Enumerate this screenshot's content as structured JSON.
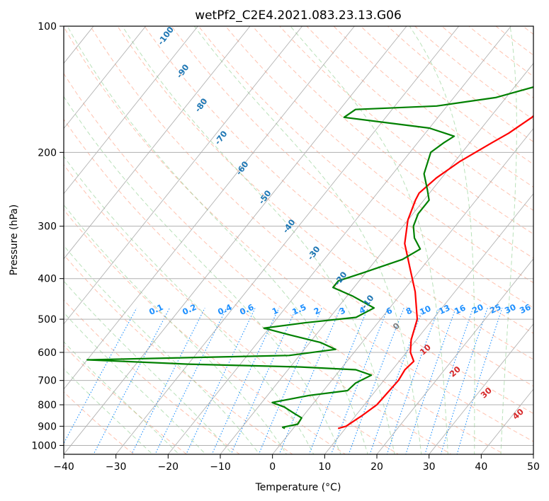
{
  "chart_data": {
    "type": "line",
    "subtype": "skew-t log-p diagram",
    "title": "wetPf2_C2E4.2021.083.23.13.G06",
    "xlabel": "Temperature (°C)",
    "ylabel": "Pressure (hPa)",
    "xlim": [
      -40,
      50
    ],
    "ylim": [
      1050,
      100
    ],
    "y_scale": "log",
    "grid": true,
    "x_ticks": [
      -40,
      -30,
      -20,
      -10,
      0,
      10,
      20,
      30,
      40,
      50
    ],
    "x_tick_labels": [
      "−40",
      "−30",
      "−20",
      "−10",
      "0",
      "10",
      "20",
      "30",
      "40",
      "50"
    ],
    "y_ticks": [
      100,
      200,
      300,
      400,
      500,
      600,
      700,
      800,
      900,
      1000
    ],
    "y_tick_labels": [
      "100",
      "200",
      "300",
      "400",
      "500",
      "600",
      "700",
      "800",
      "900",
      "1000"
    ],
    "colors": {
      "temperature": "#ff0000",
      "dewpoint": "#008000",
      "dry_adiabat": "#ff9a7a",
      "moist_adiabat": "#7fc97f",
      "mixing_ratio": "#1e90ff",
      "isotherm": "#999999",
      "label_blue": "#1f77b4",
      "label_red": "#d62728",
      "label_grey": "#808080"
    },
    "series": [
      {
        "name": "Temperature",
        "color": "#ff0000",
        "points": [
          [
            8.6,
            911
          ],
          [
            9.8,
            900
          ],
          [
            11.2,
            850
          ],
          [
            12.4,
            800
          ],
          [
            12.6,
            750
          ],
          [
            12.8,
            700
          ],
          [
            12.4,
            660
          ],
          [
            12.8,
            630
          ],
          [
            10.8,
            600
          ],
          [
            9.0,
            560
          ],
          [
            7.0,
            500
          ],
          [
            2.4,
            430
          ],
          [
            -2.0,
            380
          ],
          [
            -7.0,
            330
          ],
          [
            -10.0,
            290
          ],
          [
            -11.6,
            260
          ],
          [
            -12.0,
            250
          ],
          [
            -11.0,
            230
          ],
          [
            -9.0,
            210
          ],
          [
            -5.8,
            190
          ],
          [
            -4.0,
            180
          ],
          [
            -2.0,
            165
          ],
          [
            -1.0,
            150
          ],
          [
            -1.0,
            135
          ],
          [
            -2.0,
            125
          ],
          [
            -2.2,
            117
          ],
          [
            -1.2,
            110
          ],
          [
            0.0,
            100
          ]
        ]
      },
      {
        "name": "Dewpoint",
        "color": "#008000",
        "points": [
          [
            -1.6,
            911
          ],
          [
            -2.2,
            905
          ],
          [
            0.2,
            890
          ],
          [
            0.0,
            860
          ],
          [
            -2.0,
            840
          ],
          [
            -5.0,
            810
          ],
          [
            -8.0,
            790
          ],
          [
            -2.0,
            760
          ],
          [
            4.6,
            740
          ],
          [
            5.0,
            710
          ],
          [
            6.8,
            680
          ],
          [
            3.0,
            660
          ],
          [
            -8.0,
            650
          ],
          [
            -30.0,
            640
          ],
          [
            -50.0,
            625
          ],
          [
            -12.0,
            610
          ],
          [
            -4.0,
            590
          ],
          [
            -8.0,
            568
          ],
          [
            -15.0,
            545
          ],
          [
            -21.0,
            525
          ],
          [
            -14.0,
            510
          ],
          [
            -5.0,
            495
          ],
          [
            -3.0,
            470
          ],
          [
            -9.0,
            440
          ],
          [
            -14.0,
            420
          ],
          [
            -14.0,
            405
          ],
          [
            -11.0,
            390
          ],
          [
            -5.0,
            360
          ],
          [
            -3.2,
            340
          ],
          [
            -6.0,
            320
          ],
          [
            -8.0,
            300
          ],
          [
            -9.0,
            280
          ],
          [
            -9.0,
            260
          ],
          [
            -11.0,
            245
          ],
          [
            -14.0,
            225
          ],
          [
            -16.0,
            200
          ],
          [
            -15.0,
            190
          ],
          [
            -14.0,
            183
          ],
          [
            -20.0,
            175
          ],
          [
            -38.0,
            165
          ],
          [
            -37.0,
            158
          ],
          [
            -22.0,
            155
          ],
          [
            -12.0,
            148
          ],
          [
            -3.0,
            135
          ],
          [
            5.0,
            120
          ],
          [
            14.0,
            107
          ],
          [
            20.0,
            100
          ]
        ]
      }
    ],
    "mixing_ratio_labels": [
      "0.1",
      "0.2",
      "0.4",
      "0.6",
      "1",
      "1.5",
      "2",
      "3",
      "4",
      "6",
      "8",
      "10",
      "13",
      "16",
      "20",
      "25",
      "30",
      "36"
    ],
    "dry_adiabat_labels": [
      "-100",
      "-90",
      "-80",
      "-70",
      "-60",
      "-50",
      "-40",
      "-30",
      "-20",
      "-10"
    ],
    "moist_adiabat_labels": [
      "0",
      "10",
      "20",
      "30",
      "40"
    ]
  }
}
